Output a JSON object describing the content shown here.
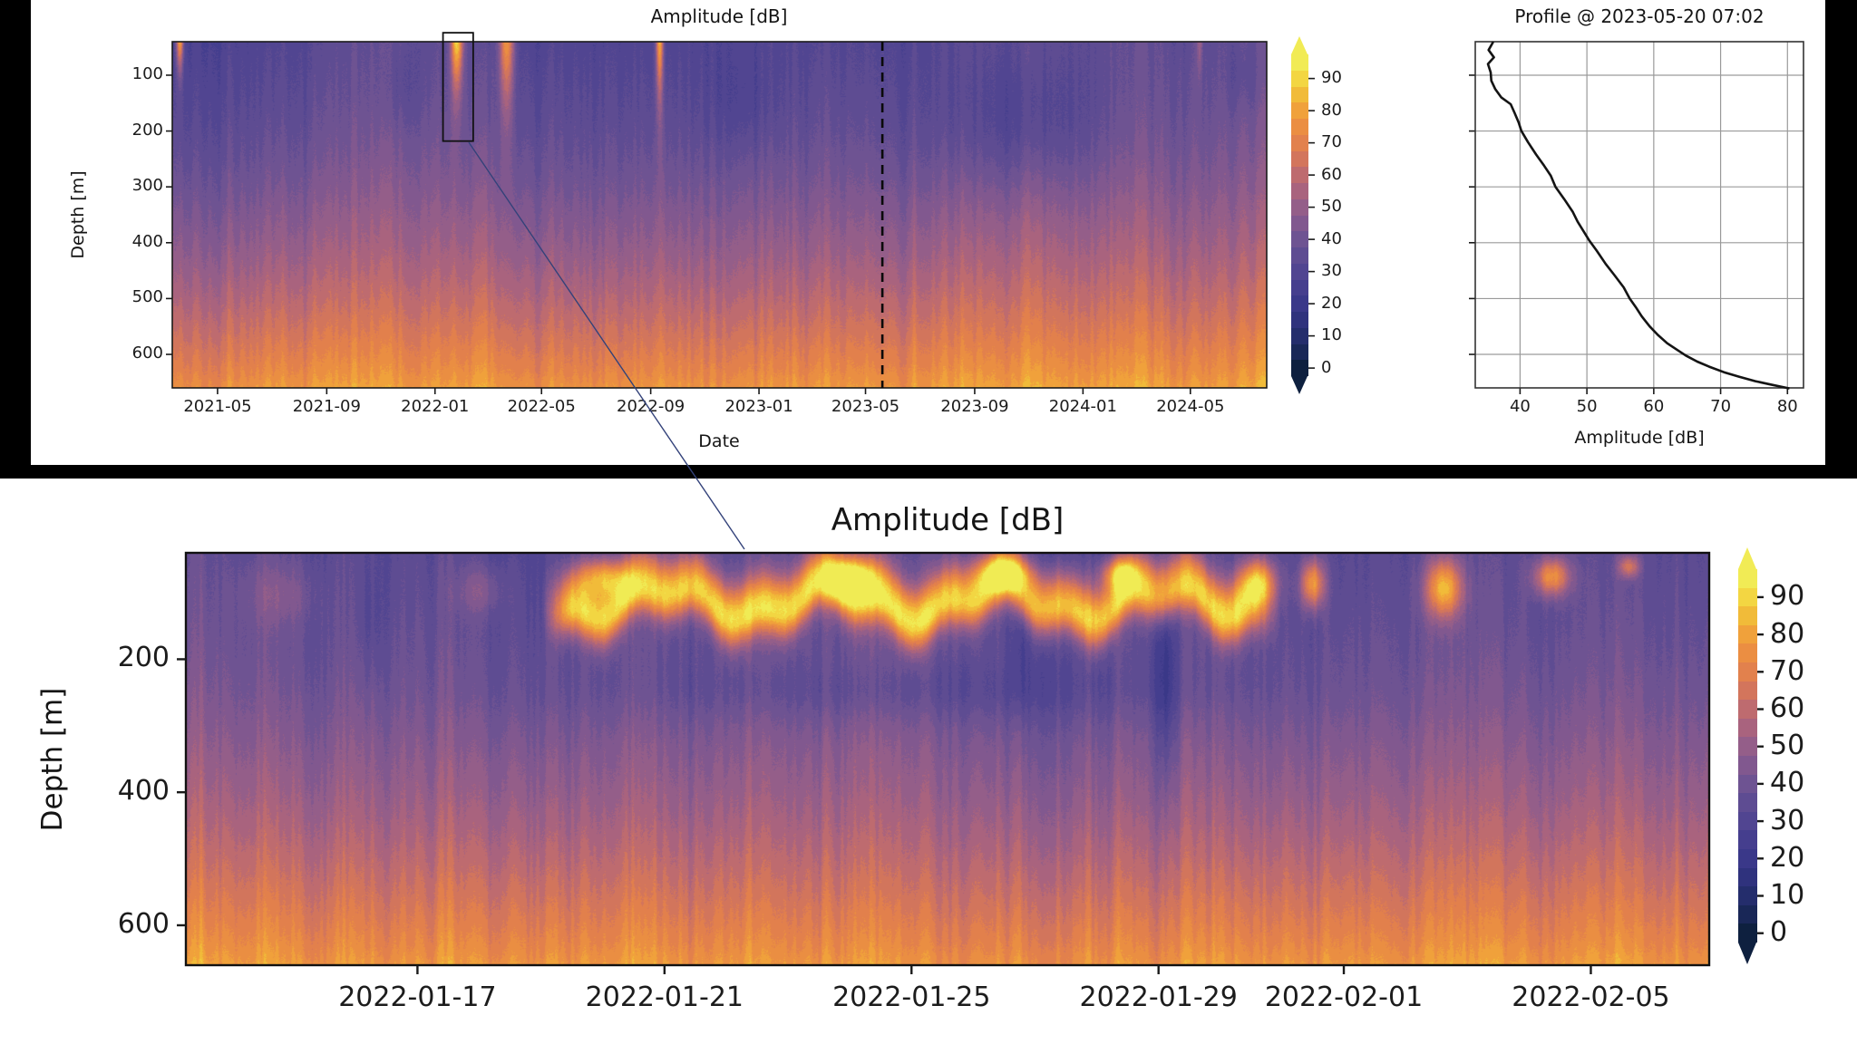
{
  "colors": {
    "page_background": "#000000",
    "figure_background": "#ffffff",
    "text": "#1c1c1c",
    "axis": "#1a1a1a",
    "grid": "#9a9a9a",
    "profile_line": "#141414",
    "connector_line": "#33427a",
    "dashed_marker": "#0a0a0a",
    "colormap": [
      [
        0,
        "#081d33"
      ],
      [
        10,
        "#1f2a63"
      ],
      [
        20,
        "#343586"
      ],
      [
        30,
        "#4a4190"
      ],
      [
        40,
        "#655093"
      ],
      [
        50,
        "#8a5b8e"
      ],
      [
        60,
        "#b36679"
      ],
      [
        70,
        "#dd7a52"
      ],
      [
        80,
        "#ef943c"
      ],
      [
        90,
        "#f2c838"
      ],
      [
        95,
        "#f3e44c"
      ],
      [
        100,
        "#eef25d"
      ]
    ]
  },
  "top_figure": {
    "heatmap": {
      "title": "Amplitude [dB]",
      "xlabel": "Date",
      "ylabel": "Depth [m]",
      "x_tick_labels": [
        "2021-05",
        "2021-09",
        "2022-01",
        "2022-05",
        "2022-09",
        "2023-01",
        "2023-05",
        "2023-09",
        "2024-01",
        "2024-05"
      ],
      "y_tick_labels": [
        "100",
        "200",
        "300",
        "400",
        "500",
        "600"
      ],
      "dashed_marker_date": "2023-05-20",
      "zoom_box_date_range": [
        "2022-01-10",
        "2022-02-13"
      ],
      "zoom_box_depth_range_m": [
        24,
        218
      ]
    },
    "colorbar": {
      "tick_labels": [
        "0",
        "10",
        "20",
        "30",
        "40",
        "50",
        "60",
        "70",
        "80",
        "90"
      ]
    },
    "profile": {
      "title": "Profile @ 2023-05-20 07:02",
      "xlabel": "Amplitude [dB]",
      "x_tick_labels": [
        "40",
        "50",
        "60",
        "70",
        "80"
      ],
      "x_range_db": [
        33.3,
        82.4
      ],
      "depth_grid_m": [
        100,
        200,
        300,
        400,
        500,
        600
      ]
    }
  },
  "bottom_figure": {
    "title": "Amplitude [dB]",
    "ylabel": "Depth [m]",
    "x_tick_labels": [
      "2022-01-17",
      "2022-01-21",
      "2022-01-25",
      "2022-01-29",
      "2022-02-01",
      "2022-02-05"
    ],
    "y_tick_labels": [
      "200",
      "400",
      "600"
    ],
    "colorbar": {
      "tick_labels": [
        "0",
        "10",
        "20",
        "30",
        "40",
        "50",
        "60",
        "70",
        "80",
        "90"
      ]
    }
  },
  "chart_data": [
    {
      "id": "overview_heatmap",
      "type": "heatmap",
      "title": "Amplitude [dB]",
      "xlabel": "Date",
      "ylabel": "Depth [m]",
      "x_ticks": [
        "2021-05",
        "2021-09",
        "2022-01",
        "2022-05",
        "2022-09",
        "2023-01",
        "2023-05",
        "2023-09",
        "2024-01",
        "2024-05"
      ],
      "y_ticks": [
        100,
        200,
        300,
        400,
        500,
        600
      ],
      "x_range": [
        "2021-03-11",
        "2024-07-26"
      ],
      "y_range": [
        40,
        660
      ],
      "colorbar_range": [
        0,
        95
      ],
      "colorbar_ticks": [
        0,
        10,
        20,
        30,
        40,
        50,
        60,
        70,
        80,
        90
      ],
      "background_profile_db": [
        [
          40,
          35.8
        ],
        [
          100,
          37.5
        ],
        [
          150,
          39
        ],
        [
          200,
          41
        ],
        [
          250,
          43.5
        ],
        [
          300,
          46.5
        ],
        [
          350,
          50
        ],
        [
          400,
          53.5
        ],
        [
          450,
          57.5
        ],
        [
          500,
          62
        ],
        [
          550,
          67
        ],
        [
          600,
          72.5
        ],
        [
          630,
          76
        ],
        [
          660,
          80.5
        ]
      ],
      "dashed_marker_date": "2023-05-20",
      "events": [
        {
          "type": "plume",
          "start": "2021-03-14",
          "end": "2021-03-24",
          "top": 40,
          "bottom": 135,
          "peak": 50
        },
        {
          "type": "plume",
          "start": "2022-01-17",
          "end": "2022-02-03",
          "top": 40,
          "bottom": 205,
          "peak": 55
        },
        {
          "type": "plume",
          "start": "2022-03-12",
          "end": "2022-04-02",
          "top": 40,
          "bottom": 275,
          "peak": 46
        },
        {
          "type": "plume",
          "start": "2022-09-06",
          "end": "2022-09-16",
          "top": 40,
          "bottom": 235,
          "peak": 50
        },
        {
          "type": "plume",
          "start": "2024-05-08",
          "end": "2024-05-16",
          "top": 40,
          "bottom": 160,
          "peak": 16
        },
        {
          "type": "shade",
          "start": "2023-07-01",
          "end": "2024-02-20",
          "top": 40,
          "bottom": 330,
          "peak": -9
        },
        {
          "type": "shade",
          "start": "2022-10-20",
          "end": "2023-02-05",
          "top": 40,
          "bottom": 260,
          "peak": -5
        },
        {
          "type": "shade",
          "start": "2021-10-25",
          "end": "2021-12-25",
          "top": 40,
          "bottom": 210,
          "peak": -4
        },
        {
          "type": "shade",
          "start": "2024-06-05",
          "end": "2024-07-25",
          "top": 40,
          "bottom": 170,
          "peak": -4
        }
      ]
    },
    {
      "id": "zoom_heatmap",
      "type": "heatmap",
      "title": "Amplitude [dB]",
      "ylabel": "Depth [m]",
      "x_ticks": [
        "2022-01-17",
        "2022-01-21",
        "2022-01-25",
        "2022-01-29",
        "2022-02-01",
        "2022-02-05"
      ],
      "y_ticks": [
        200,
        400,
        600
      ],
      "x_range": [
        "2022-01-13T06:00:00Z",
        "2022-02-06T22:00:00Z"
      ],
      "y_range": [
        40,
        660
      ],
      "colorbar_range": [
        0,
        95
      ],
      "colorbar_ticks": [
        0,
        10,
        20,
        30,
        40,
        50,
        60,
        70,
        80,
        90
      ],
      "background_profile_db": [
        [
          40,
          35.8
        ],
        [
          100,
          37.5
        ],
        [
          150,
          39
        ],
        [
          200,
          41
        ],
        [
          250,
          43.5
        ],
        [
          300,
          46.5
        ],
        [
          350,
          50
        ],
        [
          400,
          53.5
        ],
        [
          450,
          57.5
        ],
        [
          500,
          62
        ],
        [
          550,
          67
        ],
        [
          600,
          72.5
        ],
        [
          630,
          76
        ],
        [
          660,
          80.5
        ]
      ],
      "events": [
        {
          "type": "ridge",
          "start": "2022-01-19T00:00:00Z",
          "end": "2022-01-31T00:00:00Z",
          "d_center": 112,
          "d_sigma_up": 52,
          "d_sigma_dn": 40,
          "wave_amp_m": 22,
          "wave_period_days": 2.7,
          "peak": 56
        },
        {
          "type": "shade",
          "start": "2022-01-19",
          "end": "2022-01-31",
          "top": 195,
          "bottom": 300,
          "peak": -6
        },
        {
          "type": "blob",
          "start": "2022-01-19T12:00:00Z",
          "end": "2022-01-20T12:00:00Z",
          "top": 40,
          "bottom": 110,
          "peak": 40
        },
        {
          "type": "blob",
          "start": "2022-01-23T12:00:00Z",
          "end": "2022-01-24T12:00:00Z",
          "top": 40,
          "bottom": 110,
          "peak": 45
        },
        {
          "type": "blob",
          "start": "2022-01-26T00:00:00Z",
          "end": "2022-01-27T00:00:00Z",
          "top": 40,
          "bottom": 100,
          "peak": 40
        },
        {
          "type": "blob",
          "start": "2022-01-28T00:00:00Z",
          "end": "2022-01-28T18:00:00Z",
          "top": 40,
          "bottom": 100,
          "peak": 40
        },
        {
          "type": "blob",
          "start": "2022-01-30T06:00:00Z",
          "end": "2022-01-31T00:00:00Z",
          "top": 40,
          "bottom": 130,
          "peak": 48
        },
        {
          "type": "blob",
          "start": "2022-01-31T06:00:00Z",
          "end": "2022-01-31T18:00:00Z",
          "top": 40,
          "bottom": 130,
          "peak": 46
        },
        {
          "type": "blob",
          "start": "2022-02-02T06:00:00Z",
          "end": "2022-02-03T00:00:00Z",
          "top": 40,
          "bottom": 145,
          "peak": 48
        },
        {
          "type": "blob",
          "start": "2022-02-04T00:00:00Z",
          "end": "2022-02-04T18:00:00Z",
          "top": 40,
          "bottom": 110,
          "peak": 42
        },
        {
          "type": "blob",
          "start": "2022-02-05T10:00:00Z",
          "end": "2022-02-05T20:00:00Z",
          "top": 40,
          "bottom": 80,
          "peak": 30
        },
        {
          "type": "blob",
          "start": "2022-01-14T00:00:00Z",
          "end": "2022-01-15T12:00:00Z",
          "top": 40,
          "bottom": 160,
          "peak": 10
        },
        {
          "type": "blob",
          "start": "2022-01-17T12:00:00Z",
          "end": "2022-01-18T12:00:00Z",
          "top": 50,
          "bottom": 140,
          "peak": 12
        },
        {
          "type": "shade",
          "start": "2022-01-28T22:00:00Z",
          "end": "2022-01-29T08:00:00Z",
          "top": 40,
          "bottom": 420,
          "peak": -14
        },
        {
          "type": "shade",
          "start": "2022-01-26T14:00:00Z",
          "end": "2022-01-26T22:00:00Z",
          "top": 40,
          "bottom": 300,
          "peak": -9
        },
        {
          "type": "shade",
          "start": "2022-01-16T00:00:00Z",
          "end": "2022-01-16T12:00:00Z",
          "top": 40,
          "bottom": 250,
          "peak": -5
        }
      ]
    },
    {
      "id": "amplitude_profile",
      "type": "line",
      "title": "Profile @ 2023-05-20 07:02",
      "xlabel": "Amplitude [dB]",
      "x_ticks": [
        40,
        50,
        60,
        70,
        80
      ],
      "x_range": [
        33.3,
        82.4
      ],
      "y_axis": "depth_m",
      "y_range": [
        40,
        660
      ],
      "grid": true,
      "points_db_depth": [
        [
          36.0,
          40
        ],
        [
          35.3,
          55
        ],
        [
          36.1,
          68
        ],
        [
          35.2,
          80
        ],
        [
          35.6,
          95
        ],
        [
          35.7,
          110
        ],
        [
          36.3,
          125
        ],
        [
          37.2,
          140
        ],
        [
          38.6,
          152
        ],
        [
          39.2,
          168
        ],
        [
          39.8,
          185
        ],
        [
          40.2,
          200
        ],
        [
          41.2,
          220
        ],
        [
          42.4,
          242
        ],
        [
          43.6,
          262
        ],
        [
          44.6,
          280
        ],
        [
          45.3,
          300
        ],
        [
          46.6,
          322
        ],
        [
          47.9,
          345
        ],
        [
          48.6,
          362
        ],
        [
          50.3,
          395
        ],
        [
          51.5,
          415
        ],
        [
          52.8,
          438
        ],
        [
          54.1,
          458
        ],
        [
          55.5,
          480
        ],
        [
          56.4,
          500
        ],
        [
          57.3,
          515
        ],
        [
          58.2,
          532
        ],
        [
          59.4,
          550
        ],
        [
          60.6,
          565
        ],
        [
          62.0,
          580
        ],
        [
          63.5,
          592
        ],
        [
          64.8,
          602
        ],
        [
          66.5,
          613
        ],
        [
          68.3,
          622
        ],
        [
          70.5,
          632
        ],
        [
          72.8,
          640
        ],
        [
          75.2,
          648
        ],
        [
          77.5,
          654
        ],
        [
          79.5,
          659
        ],
        [
          80.3,
          661
        ]
      ]
    }
  ]
}
